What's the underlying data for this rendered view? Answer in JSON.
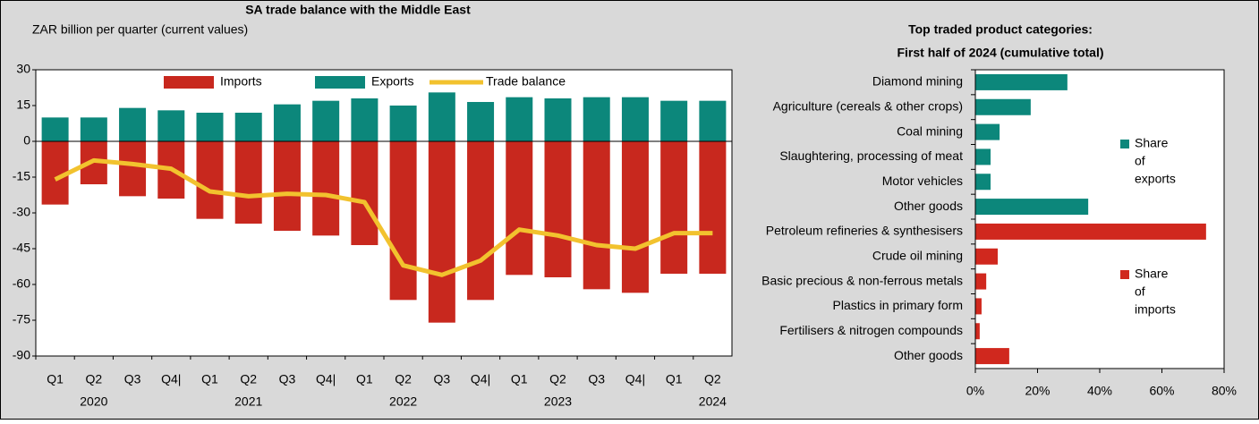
{
  "chart_data": [
    {
      "type": "bar",
      "title": "SA trade balance with the Middle East",
      "subtitle": "ZAR billion per quarter (current values)",
      "categories": [
        "Q1",
        "Q2",
        "Q3",
        "Q4|",
        "Q1",
        "Q2",
        "Q3",
        "Q4|",
        "Q1",
        "Q2",
        "Q3",
        "Q4|",
        "Q1",
        "Q2",
        "Q3",
        "Q4|",
        "Q1",
        "Q2"
      ],
      "years": [
        "2020",
        "2021",
        "2022",
        "2023",
        "2024"
      ],
      "series": [
        {
          "name": "Imports",
          "type": "bar",
          "color": "#c8281e",
          "values": [
            -26.5,
            -18,
            -23,
            -24,
            -32.5,
            -34.5,
            -37.5,
            -39.5,
            -43.5,
            -66.5,
            -76,
            -66.5,
            -56,
            -57,
            -62,
            -63.5,
            -55.5,
            -55.5
          ]
        },
        {
          "name": "Exports",
          "type": "bar",
          "color": "#0c877b",
          "values": [
            10,
            10,
            14,
            13,
            12,
            12,
            15.5,
            17,
            18,
            15,
            20.5,
            16.5,
            18.5,
            18,
            18.5,
            18.5,
            17,
            17
          ]
        },
        {
          "name": "Trade balance",
          "type": "line",
          "color": "#f2c22e",
          "values": [
            -16,
            -8,
            -9.5,
            -11.5,
            -21,
            -23,
            -22,
            -22.5,
            -25.5,
            -52,
            -56,
            -50,
            -37,
            -39.5,
            -43.5,
            -45,
            -38.5,
            -38.5
          ]
        }
      ],
      "ylim": [
        -90,
        30
      ],
      "yticks": [
        -90,
        -75,
        -60,
        -45,
        -30,
        -15,
        0,
        15,
        30
      ]
    },
    {
      "type": "hbar",
      "title": [
        "Top traded product categories:",
        "First half of 2024 (cumulative total)"
      ],
      "categories": [
        "Diamond mining",
        "Agriculture (cereals & other crops)",
        "Coal mining",
        "Slaughtering, processing of meat",
        "Motor vehicles",
        "Other goods",
        "Petroleum refineries & synthesisers",
        "Crude oil mining",
        "Basic precious & non-ferrous metals",
        "Plastics in primary form",
        "Fertilisers & nitrogen compounds",
        "Other goods"
      ],
      "series": [
        {
          "name": [
            "Share",
            "of",
            "exports"
          ],
          "color": "#0c877b",
          "values": [
            29.6,
            17.8,
            7.8,
            4.9,
            4.9,
            36.3,
            null,
            null,
            null,
            null,
            null,
            null
          ]
        },
        {
          "name": [
            "Share",
            "of",
            "imports"
          ],
          "color": "#d0281e",
          "values": [
            null,
            null,
            null,
            null,
            null,
            null,
            74.2,
            7.2,
            3.5,
            2,
            1.4,
            10.9
          ]
        }
      ],
      "xlim": [
        0,
        80
      ],
      "xticks": [
        {
          "value": 0,
          "label": "0%"
        },
        {
          "value": 20,
          "label": "20%"
        },
        {
          "value": 40,
          "label": "40%"
        },
        {
          "value": 60,
          "label": "60%"
        },
        {
          "value": 80,
          "label": "80%"
        }
      ]
    }
  ]
}
